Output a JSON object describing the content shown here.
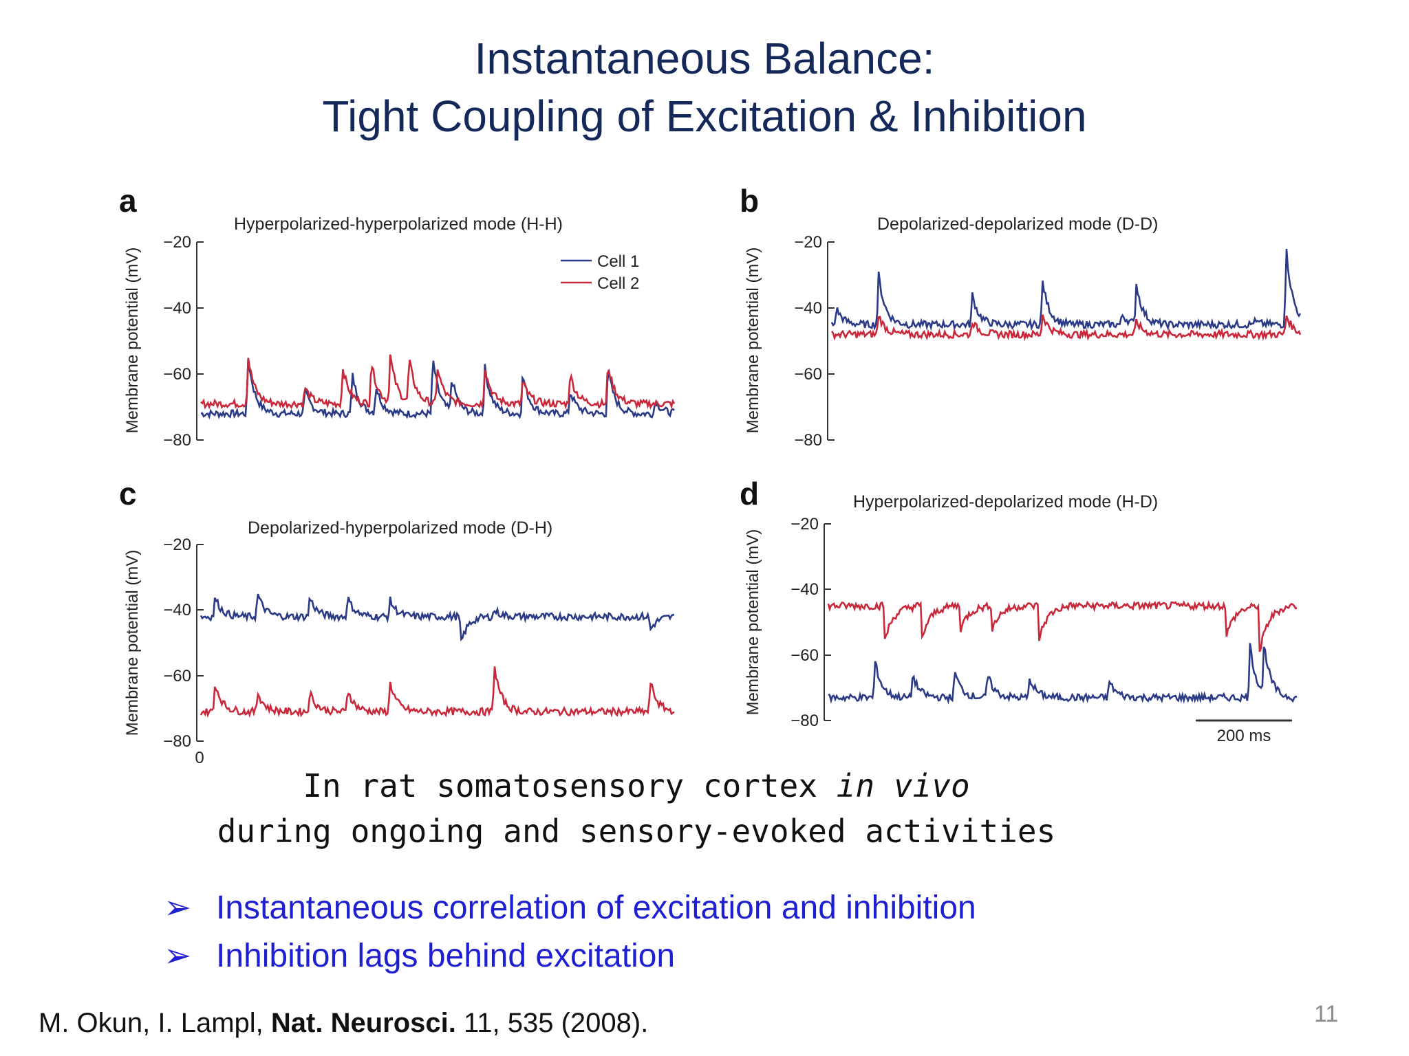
{
  "slide": {
    "title_line1": "Instantaneous Balance:",
    "title_line2": "Tight Coupling of Excitation & Inhibition",
    "caption_line1_pre": "In rat somatosensory cortex ",
    "caption_line1_em": "in vivo",
    "caption_line2": "during ongoing and sensory-evoked activities",
    "bullets": [
      "Instantaneous correlation of excitation and inhibition",
      "Inhibition lags behind excitation"
    ],
    "bullet_marker": "➢",
    "citation_pre": "M. Okun, I. Lampl, ",
    "citation_bold": "Nat. Neurosci.",
    "citation_post": " 11, 535 (2008).",
    "page_number": "11",
    "colors": {
      "title": "#14285a",
      "bullets": "#1f1fd2",
      "cell1": "#2b3a86",
      "cell2": "#c8283a"
    }
  },
  "chart_data": [
    {
      "type": "line",
      "panel": "a",
      "title": "Hyperpolarized-hyperpolarized mode (H-H)",
      "ylabel": "Membrane potential (mV)",
      "yticks": [
        "−20",
        "−40",
        "−60",
        "−80"
      ],
      "ylim": [
        -80,
        -20
      ],
      "legend": [
        "Cell 1",
        "Cell 2"
      ],
      "legend_position": "top-right",
      "series": [
        {
          "name": "Cell 1",
          "baseline": -72,
          "spikes": [
            [
              0.1,
              -55,
              "sharp"
            ],
            [
              0.22,
              -65,
              "sharp"
            ],
            [
              0.32,
              -60,
              "sharp"
            ],
            [
              0.37,
              -64,
              "sharp"
            ],
            [
              0.49,
              -55,
              "sharp"
            ],
            [
              0.53,
              -62,
              "sharp"
            ],
            [
              0.6,
              -58,
              "sharp"
            ],
            [
              0.68,
              -60,
              "sharp"
            ],
            [
              0.78,
              -65,
              "sharp"
            ],
            [
              0.86,
              -58,
              "sharp"
            ],
            [
              0.96,
              -68,
              "sharp"
            ]
          ]
        },
        {
          "name": "Cell 2",
          "baseline": -69,
          "spikes": [
            [
              0.1,
              -55,
              "sharp"
            ],
            [
              0.22,
              -64,
              "sharp"
            ],
            [
              0.3,
              -58,
              "sharp"
            ],
            [
              0.36,
              -56,
              "sharp"
            ],
            [
              0.4,
              -55,
              "sharp"
            ],
            [
              0.44,
              -56,
              "sharp"
            ],
            [
              0.5,
              -58,
              "sharp"
            ],
            [
              0.6,
              -58,
              "sharp"
            ],
            [
              0.68,
              -62,
              "sharp"
            ],
            [
              0.78,
              -60,
              "sharp"
            ],
            [
              0.86,
              -57,
              "sharp"
            ]
          ]
        }
      ]
    },
    {
      "type": "line",
      "panel": "b",
      "title": "Depolarized-depolarized mode (D-D)",
      "ylabel": "Membrane potential (mV)",
      "yticks": [
        "−20",
        "−40",
        "−60",
        "−80"
      ],
      "ylim": [
        -80,
        -20
      ],
      "series": [
        {
          "name": "Cell 1",
          "baseline": -45,
          "spikes": [
            [
              0.01,
              -40,
              "sharp"
            ],
            [
              0.1,
              -30,
              "sharp"
            ],
            [
              0.3,
              -36,
              "sharp"
            ],
            [
              0.45,
              -32,
              "sharp"
            ],
            [
              0.62,
              -42,
              "sharp"
            ],
            [
              0.65,
              -33,
              "sharp"
            ],
            [
              0.9,
              -44,
              "sharp"
            ],
            [
              0.97,
              -22,
              "sharp"
            ]
          ]
        },
        {
          "name": "Cell 2",
          "baseline": -48,
          "spikes": [
            [
              0.1,
              -42,
              "sharp"
            ],
            [
              0.3,
              -44,
              "sharp"
            ],
            [
              0.45,
              -42,
              "sharp"
            ],
            [
              0.65,
              -44,
              "sharp"
            ],
            [
              0.97,
              -42,
              "sharp"
            ]
          ]
        }
      ]
    },
    {
      "type": "line",
      "panel": "c",
      "title": "Depolarized-hyperpolarized mode (D-H)",
      "ylabel": "Membrane potential (mV)",
      "yticks": [
        "−20",
        "−40",
        "−60",
        "−80"
      ],
      "xtick": "0",
      "ylim": [
        -80,
        -20
      ],
      "series": [
        {
          "name": "Cell 1",
          "baseline": -42,
          "spikes": [
            [
              0.03,
              -36,
              "sharp"
            ],
            [
              0.12,
              -35,
              "sharp"
            ],
            [
              0.23,
              -36,
              "sharp"
            ],
            [
              0.31,
              -36,
              "sharp"
            ],
            [
              0.4,
              -37,
              "sharp"
            ],
            [
              0.55,
              -50,
              "sharp"
            ],
            [
              0.62,
              -40,
              "sharp"
            ],
            [
              0.95,
              -46,
              "sharp"
            ]
          ]
        },
        {
          "name": "Cell 2",
          "baseline": -71,
          "spikes": [
            [
              0.03,
              -62,
              "sharp"
            ],
            [
              0.12,
              -65,
              "sharp"
            ],
            [
              0.23,
              -65,
              "sharp"
            ],
            [
              0.31,
              -64,
              "sharp"
            ],
            [
              0.4,
              -62,
              "sharp"
            ],
            [
              0.62,
              -57,
              "sharp"
            ],
            [
              0.95,
              -62,
              "sharp"
            ]
          ]
        }
      ]
    },
    {
      "type": "line",
      "panel": "d",
      "title": "Hyperpolarized-depolarized mode (H-D)",
      "ylabel": "Membrane potential (mV)",
      "yticks": [
        "−20",
        "−40",
        "−60",
        "−80"
      ],
      "ylim": [
        -80,
        -20
      ],
      "scale_bar": "200 ms",
      "series": [
        {
          "name": "Cell 1",
          "baseline": -73,
          "spikes": [
            [
              0.1,
              -62,
              "sharp"
            ],
            [
              0.18,
              -66,
              "sharp"
            ],
            [
              0.27,
              -65,
              "sharp"
            ],
            [
              0.34,
              -66,
              "sharp"
            ],
            [
              0.43,
              -67,
              "sharp"
            ],
            [
              0.6,
              -68,
              "sharp"
            ],
            [
              0.9,
              -57,
              "sharp"
            ],
            [
              0.93,
              -58,
              "sharp"
            ]
          ]
        },
        {
          "name": "Cell 2",
          "baseline": -45,
          "spikes": [
            [
              0.12,
              -56,
              "dip"
            ],
            [
              0.2,
              -55,
              "dip"
            ],
            [
              0.28,
              -53,
              "dip"
            ],
            [
              0.35,
              -52,
              "dip"
            ],
            [
              0.45,
              -55,
              "dip"
            ],
            [
              0.85,
              -54,
              "dip"
            ],
            [
              0.92,
              -60,
              "dip"
            ]
          ]
        }
      ]
    }
  ]
}
